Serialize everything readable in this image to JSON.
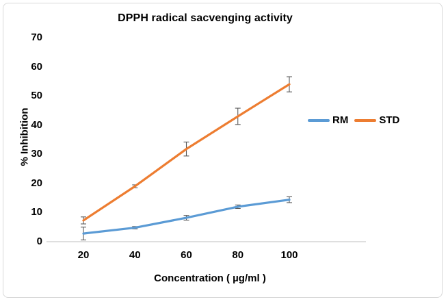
{
  "window": {
    "background_color": "#ffffff",
    "border_color": "#d9d9d9"
  },
  "chart_data": {
    "type": "line",
    "title": "DPPH radical sacvenging activity",
    "xlabel": "Concentration ( µg/ml )",
    "ylabel": "% Inhibition",
    "categories": [
      "20",
      "40",
      "60",
      "80",
      "100"
    ],
    "y_ticks": [
      "0",
      "10",
      "20",
      "30",
      "40",
      "50",
      "60",
      "70"
    ],
    "ylim": [
      0,
      70
    ],
    "grid": false,
    "markers": false,
    "legend_position": "right-middle",
    "axis_line_color": "#bfbfbf",
    "error_bar_color": "#595959",
    "text_color": "#000000",
    "series": [
      {
        "name": "RM",
        "color": "#5B9BD5",
        "values": [
          2.8,
          4.8,
          8.2,
          12,
          14.4
        ],
        "error": [
          2.2,
          0.4,
          0.8,
          0.6,
          1.0
        ]
      },
      {
        "name": "STD",
        "color": "#ED7D31",
        "values": [
          7.3,
          19,
          31.8,
          43,
          54
        ],
        "error": [
          1.2,
          0.5,
          2.4,
          2.8,
          2.6
        ]
      }
    ]
  }
}
